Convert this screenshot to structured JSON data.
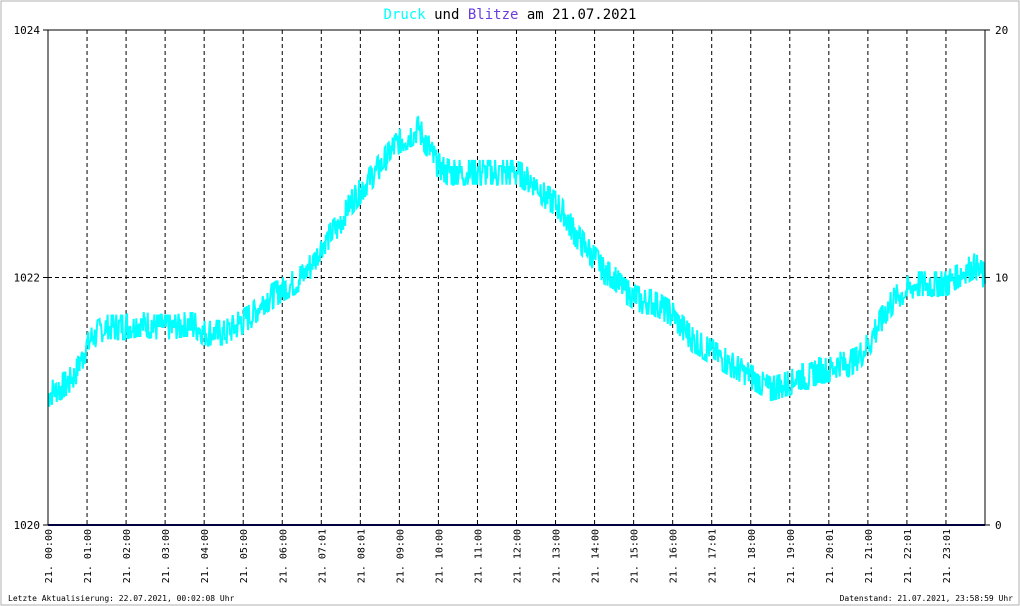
{
  "title": {
    "series_a": "Druck",
    "connector": " und ",
    "series_b": "Blitze",
    "date_part": " am 21.07.2021"
  },
  "colors": {
    "pressure": "#00ffff",
    "lightning": "#6a3ce0",
    "baseline": "#000080",
    "grid": "#000000",
    "border": "#000000"
  },
  "footer": {
    "left": "Letzte Aktualisierung: 22.07.2021, 00:02:08 Uhr",
    "right": "Datenstand: 21.07.2021, 23:58:59 Uhr"
  },
  "chart_data": {
    "type": "line",
    "x_tick_labels": [
      "21. 00:00",
      "21. 01:00",
      "21. 02:00",
      "21. 03:00",
      "21. 04:00",
      "21. 05:00",
      "21. 06:00",
      "21. 07:01",
      "21. 08:01",
      "21. 09:00",
      "21. 10:00",
      "21. 11:00",
      "21. 12:00",
      "21. 13:00",
      "21. 14:00",
      "21. 15:00",
      "21. 16:00",
      "21. 17:01",
      "21. 18:00",
      "21. 19:00",
      "21. 20:01",
      "21. 21:00",
      "21. 22:01",
      "21. 23:01"
    ],
    "x_unit": "hours",
    "xlim": [
      0,
      24
    ],
    "y_left": {
      "ylim": [
        1020,
        1024
      ],
      "ticks": [
        "1020",
        "1022",
        "1024"
      ]
    },
    "y_right": {
      "ylim": [
        0,
        20
      ],
      "ticks": [
        "0",
        "10",
        "20"
      ]
    },
    "grid": true,
    "series": [
      {
        "name": "Druck",
        "axis": "left",
        "x": [
          0,
          0.25,
          0.5,
          0.75,
          1,
          1.25,
          1.5,
          1.75,
          2,
          2.25,
          2.5,
          2.75,
          3,
          3.25,
          3.5,
          3.75,
          4,
          4.25,
          4.5,
          4.75,
          5,
          5.25,
          5.5,
          5.75,
          6,
          6.25,
          6.5,
          6.75,
          7,
          7.25,
          7.5,
          7.75,
          8,
          8.25,
          8.5,
          8.75,
          9,
          9.25,
          9.5,
          9.75,
          10,
          10.25,
          10.5,
          10.75,
          11,
          11.25,
          11.5,
          11.75,
          12,
          12.25,
          12.5,
          12.75,
          13,
          13.25,
          13.5,
          13.75,
          14,
          14.25,
          14.5,
          14.75,
          15,
          15.25,
          15.5,
          15.75,
          16,
          16.25,
          16.5,
          16.75,
          17,
          17.25,
          17.5,
          17.75,
          18,
          18.25,
          18.5,
          18.75,
          19,
          19.25,
          19.5,
          19.75,
          20,
          20.25,
          20.5,
          20.75,
          21,
          21.25,
          21.5,
          21.75,
          22,
          22.25,
          22.5,
          22.75,
          23,
          23.25,
          23.5,
          23.75,
          24
        ],
        "y": [
          1021.05,
          1021.1,
          1021.15,
          1021.25,
          1021.45,
          1021.55,
          1021.6,
          1021.6,
          1021.6,
          1021.62,
          1021.62,
          1021.6,
          1021.6,
          1021.6,
          1021.62,
          1021.62,
          1021.55,
          1021.55,
          1021.55,
          1021.6,
          1021.65,
          1021.7,
          1021.8,
          1021.85,
          1021.9,
          1021.95,
          1022.0,
          1022.1,
          1022.25,
          1022.35,
          1022.45,
          1022.6,
          1022.7,
          1022.8,
          1022.9,
          1023.0,
          1023.1,
          1023.15,
          1023.2,
          1023.05,
          1022.9,
          1022.85,
          1022.85,
          1022.85,
          1022.85,
          1022.85,
          1022.85,
          1022.85,
          1022.85,
          1022.8,
          1022.75,
          1022.65,
          1022.6,
          1022.5,
          1022.35,
          1022.25,
          1022.15,
          1022.05,
          1022.0,
          1021.9,
          1021.85,
          1021.8,
          1021.8,
          1021.75,
          1021.7,
          1021.6,
          1021.5,
          1021.45,
          1021.4,
          1021.35,
          1021.3,
          1021.25,
          1021.2,
          1021.15,
          1021.1,
          1021.12,
          1021.15,
          1021.2,
          1021.2,
          1021.25,
          1021.25,
          1021.3,
          1021.3,
          1021.35,
          1021.45,
          1021.6,
          1021.75,
          1021.85,
          1021.9,
          1021.95,
          1021.95,
          1021.95,
          1021.95,
          1022.0,
          1022.05,
          1022.1,
          1022.0
        ]
      },
      {
        "name": "Blitze",
        "axis": "right",
        "x": [
          0,
          24
        ],
        "y": [
          0,
          0
        ]
      }
    ]
  }
}
